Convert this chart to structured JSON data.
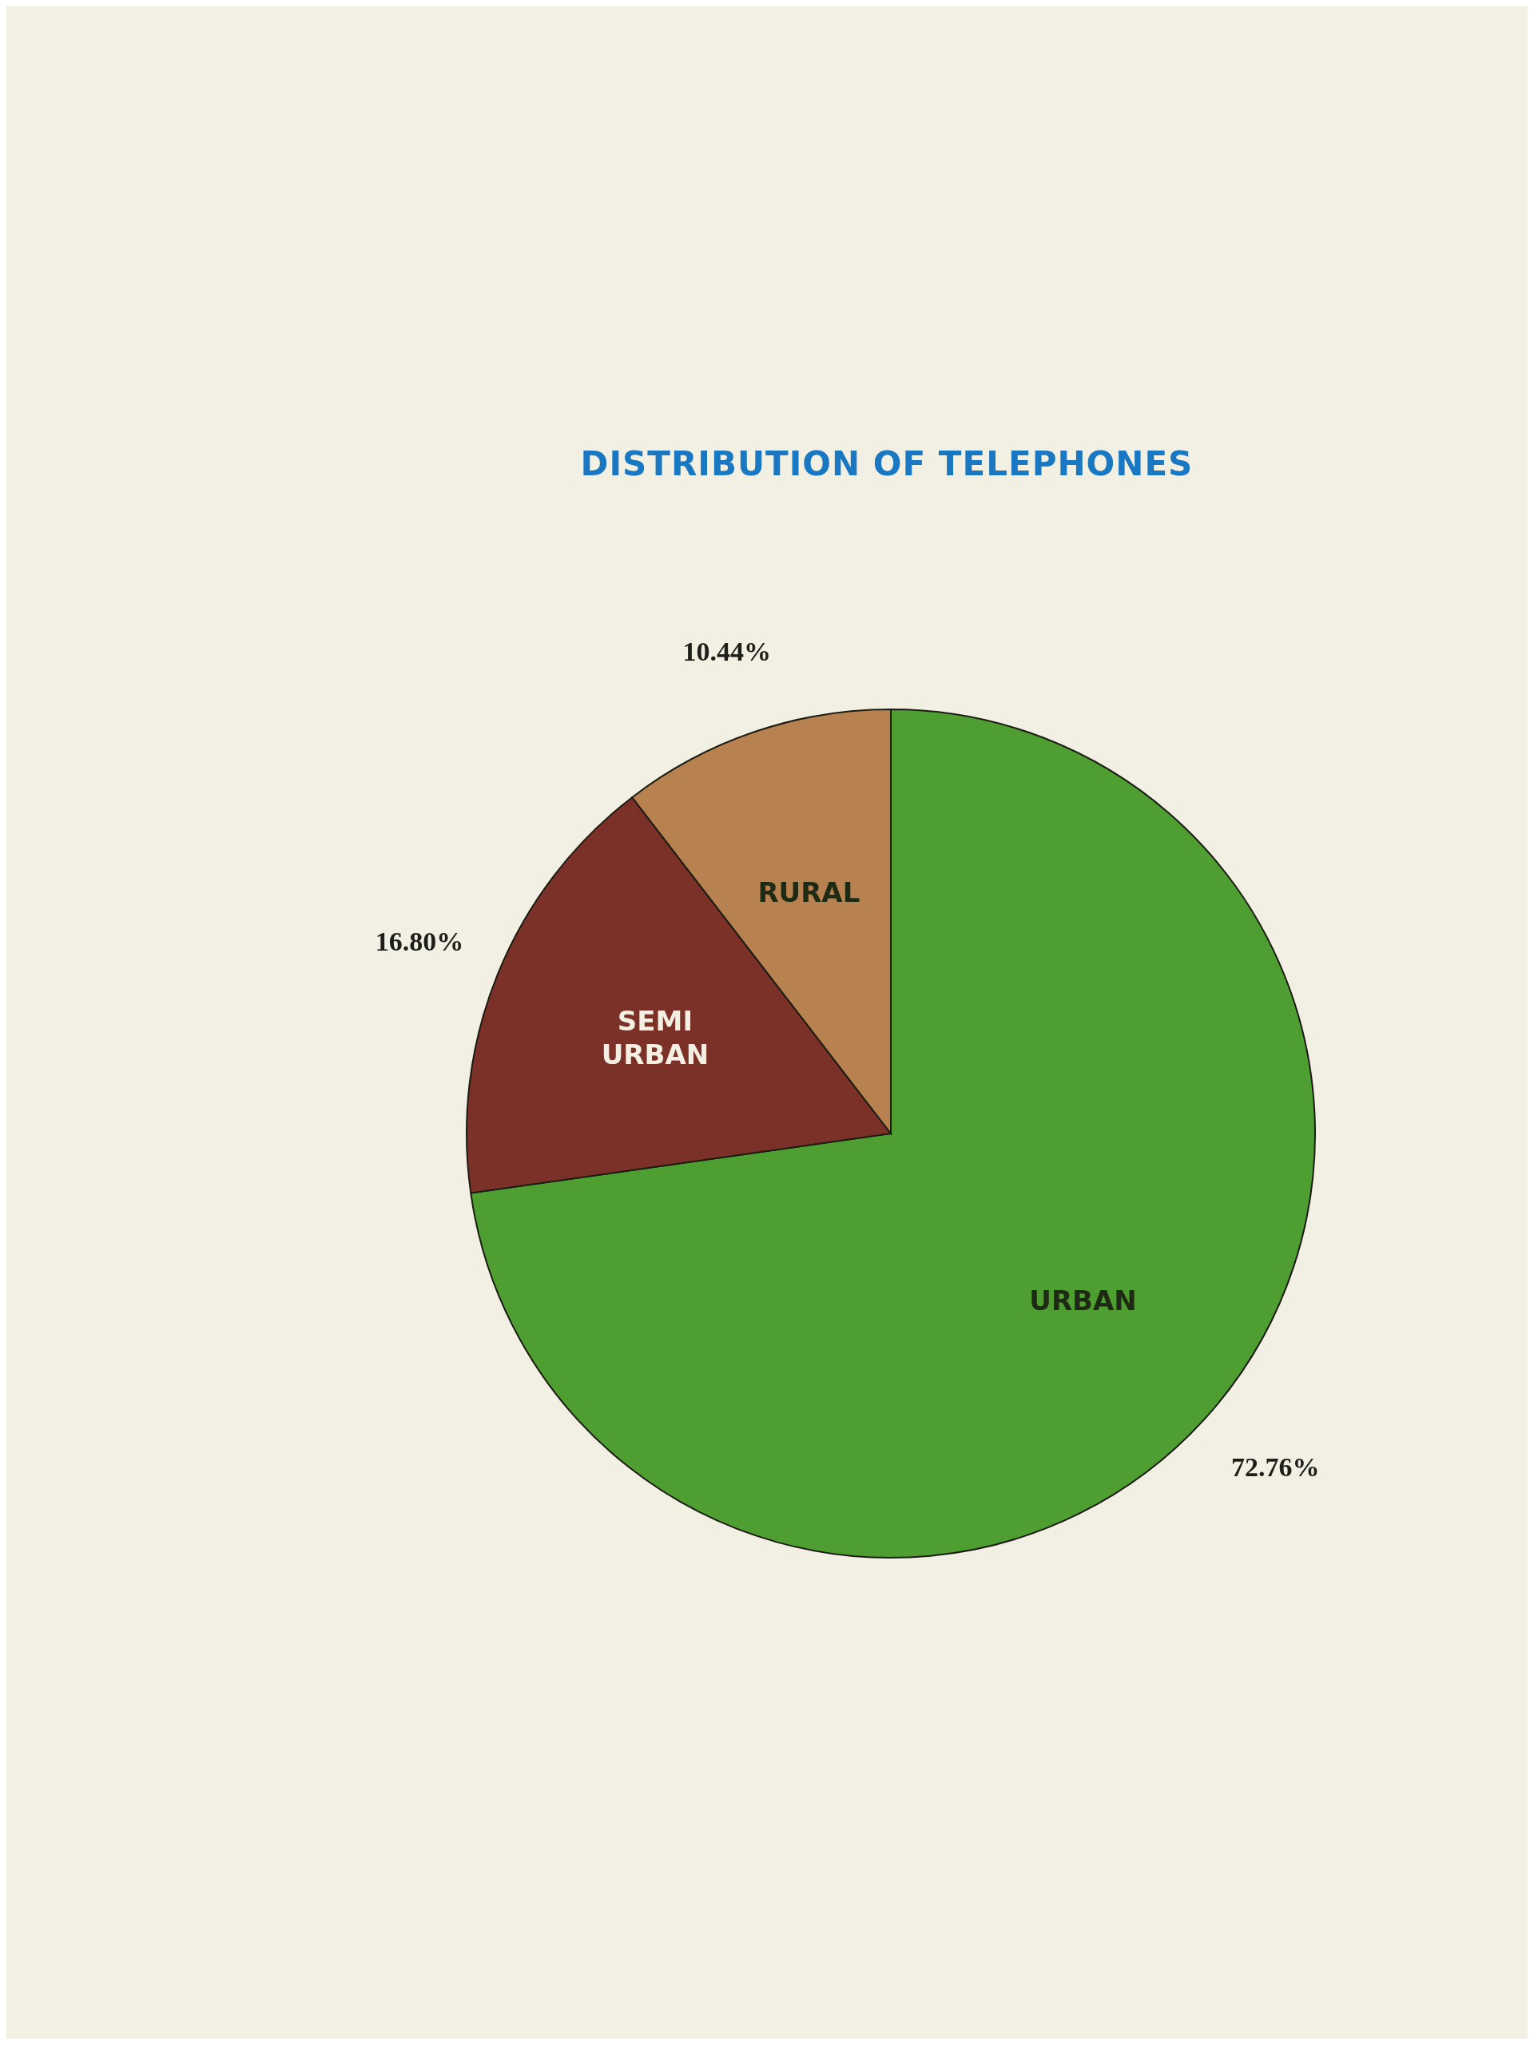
{
  "chart_data": {
    "type": "pie",
    "title": "DISTRIBUTION OF TELEPHONES",
    "categories": [
      "URBAN",
      "SEMI URBAN",
      "RURAL"
    ],
    "values": [
      72.76,
      16.8,
      10.44
    ],
    "colors": [
      "#4e9e32",
      "#7b3128",
      "#b78250"
    ],
    "value_labels": [
      "72.76%",
      "16.80%",
      "10.44%"
    ]
  }
}
